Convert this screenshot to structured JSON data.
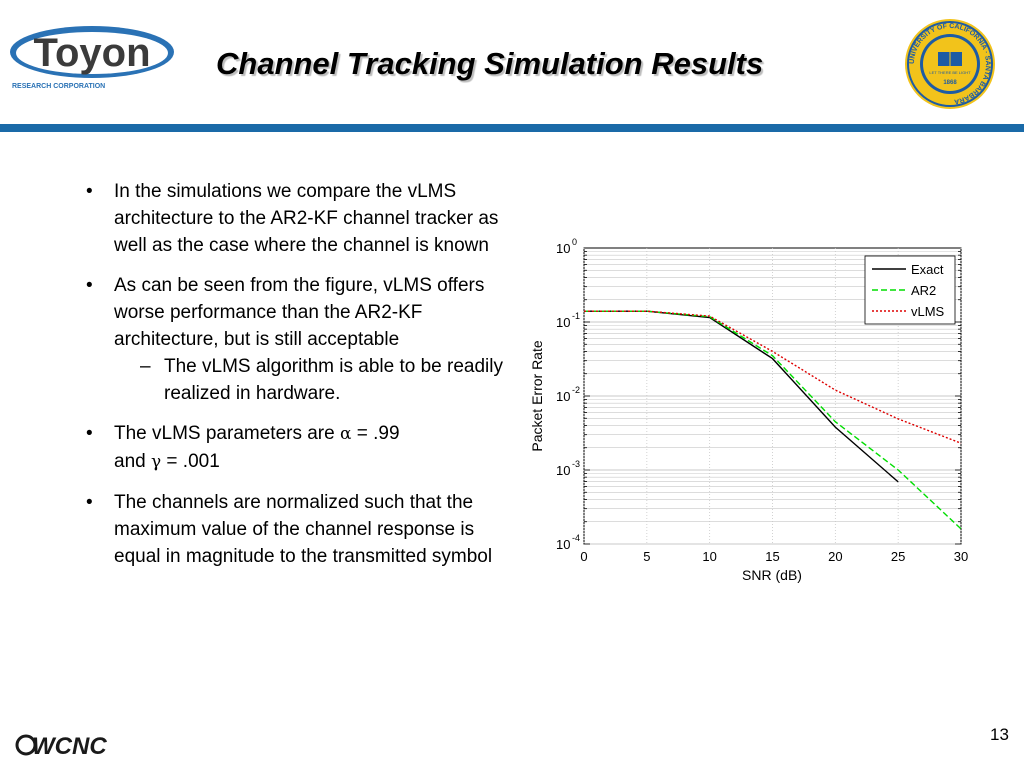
{
  "header": {
    "logo_text": "Toyon",
    "logo_subtext": "RESEARCH CORPORATION",
    "title": "Channel Tracking Simulation Results",
    "seal_text": "UNIVERSITY OF CALIFORNIA · SANTA BARBARA",
    "seal_motto": "LET THERE BE LIGHT",
    "seal_year": "1868"
  },
  "bullets": [
    {
      "text": "In the simulations we compare the vLMS architecture to the AR2-KF channel tracker as well as the case where the channel is known"
    },
    {
      "text": "As can be seen from the figure, vLMS offers worse performance than the AR2-KF architecture, but is still acceptable",
      "sub": "The vLMS algorithm is able to be readily realized in hardware."
    },
    {
      "prefix": "The vLMS parameters are ",
      "alpha": "α",
      "mid1": " = .99",
      "mid2": "and ",
      "gamma": "γ",
      "suffix": " = .001"
    },
    {
      "text": "The channels are normalized such that the maximum value of the channel response is equal in magnitude to the transmitted symbol"
    }
  ],
  "chart_data": {
    "type": "line",
    "xlabel": "SNR (dB)",
    "ylabel": "Packet Error Rate",
    "xlim": [
      0,
      30
    ],
    "ylim": [
      0.0001,
      1
    ],
    "yscale": "log",
    "x_ticks": [
      "0",
      "5",
      "10",
      "15",
      "20",
      "25",
      "30"
    ],
    "y_ticks": [
      {
        "base": "10",
        "exp": "0"
      },
      {
        "base": "10",
        "exp": "-1"
      },
      {
        "base": "10",
        "exp": "-2"
      },
      {
        "base": "10",
        "exp": "-3"
      },
      {
        "base": "10",
        "exp": "-4"
      }
    ],
    "grid": true,
    "legend_position": "top-right",
    "series": [
      {
        "name": "Exact",
        "color": "#000000",
        "style": "solid",
        "x": [
          0,
          5,
          10,
          15,
          20,
          25
        ],
        "y": [
          0.14,
          0.14,
          0.115,
          0.032,
          0.0038,
          0.00069
        ]
      },
      {
        "name": "AR2",
        "color": "#00dd00",
        "style": "dashed",
        "x": [
          0,
          5,
          10,
          15,
          20,
          25,
          30
        ],
        "y": [
          0.14,
          0.14,
          0.118,
          0.035,
          0.0045,
          0.001,
          0.00016
        ]
      },
      {
        "name": "vLMS",
        "color": "#dd0000",
        "style": "dotted",
        "x": [
          0,
          5,
          10,
          15,
          20,
          25,
          30
        ],
        "y": [
          0.14,
          0.14,
          0.12,
          0.04,
          0.012,
          0.0049,
          0.0023
        ]
      }
    ]
  },
  "footer": {
    "logo_text": "WCNC",
    "page_number": "13"
  }
}
